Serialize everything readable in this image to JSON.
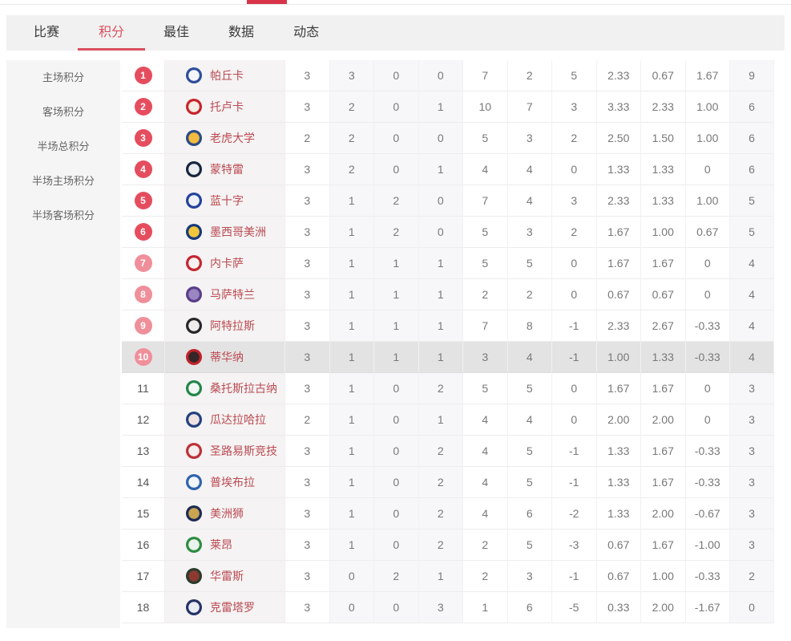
{
  "colors": {
    "accent_red": "#d7344a",
    "tab_active": "#d9505e",
    "badge_solid": "#e54d5e",
    "badge_light": "#ef8f9a",
    "team_name": "#ba4a52",
    "row_highlight": "#e4e3e3"
  },
  "tabs": [
    {
      "id": "matches",
      "label": "比赛",
      "active": false
    },
    {
      "id": "standings",
      "label": "积分",
      "active": true
    },
    {
      "id": "best",
      "label": "最佳",
      "active": false
    },
    {
      "id": "stats",
      "label": "数据",
      "active": false
    },
    {
      "id": "news",
      "label": "动态",
      "active": false
    }
  ],
  "sidebar": {
    "items": [
      {
        "id": "home-points",
        "label": "主场积分"
      },
      {
        "id": "away-points",
        "label": "客场积分"
      },
      {
        "id": "half-total-points",
        "label": "半场总积分"
      },
      {
        "id": "half-home-points",
        "label": "半场主场积分"
      },
      {
        "id": "half-away-points",
        "label": "半场客场积分"
      }
    ]
  },
  "table": {
    "highlighted_rank": 10,
    "teams": [
      {
        "rank": 1,
        "name": "帕丘卡",
        "badge": "solid",
        "logo": {
          "outer": "#2e4d9b",
          "inner": "#f3f5f9"
        },
        "stats": {
          "p": "3",
          "w": "3",
          "d": "0",
          "l": "0",
          "gf": "7",
          "ga": "2",
          "gd": "5",
          "agf": "2.33",
          "aga": "0.67",
          "agd": "1.67",
          "pts": "9"
        }
      },
      {
        "rank": 2,
        "name": "托卢卡",
        "badge": "solid",
        "logo": {
          "outer": "#c8242b",
          "inner": "#f7efe7"
        },
        "stats": {
          "p": "3",
          "w": "2",
          "d": "0",
          "l": "1",
          "gf": "10",
          "ga": "7",
          "gd": "3",
          "agf": "3.33",
          "aga": "2.33",
          "agd": "1.00",
          "pts": "6"
        }
      },
      {
        "rank": 3,
        "name": "老虎大学",
        "badge": "solid",
        "logo": {
          "outer": "#2b4b83",
          "inner": "#f3bb3f"
        },
        "stats": {
          "p": "2",
          "w": "2",
          "d": "0",
          "l": "0",
          "gf": "5",
          "ga": "3",
          "gd": "2",
          "agf": "2.50",
          "aga": "1.50",
          "agd": "1.00",
          "pts": "6"
        }
      },
      {
        "rank": 4,
        "name": "蒙特雷",
        "badge": "solid",
        "logo": {
          "outer": "#16273f",
          "inner": "#eceef1"
        },
        "stats": {
          "p": "3",
          "w": "2",
          "d": "0",
          "l": "1",
          "gf": "4",
          "ga": "4",
          "gd": "0",
          "agf": "1.33",
          "aga": "1.33",
          "agd": "0",
          "pts": "6"
        }
      },
      {
        "rank": 5,
        "name": "蓝十字",
        "badge": "solid",
        "logo": {
          "outer": "#24439c",
          "inner": "#eef2f8"
        },
        "stats": {
          "p": "3",
          "w": "1",
          "d": "2",
          "l": "0",
          "gf": "7",
          "ga": "4",
          "gd": "3",
          "agf": "2.33",
          "aga": "1.33",
          "agd": "1.00",
          "pts": "5"
        }
      },
      {
        "rank": 6,
        "name": "墨西哥美洲",
        "badge": "solid",
        "logo": {
          "outer": "#15397b",
          "inner": "#f0c63d"
        },
        "stats": {
          "p": "3",
          "w": "1",
          "d": "2",
          "l": "0",
          "gf": "5",
          "ga": "3",
          "gd": "2",
          "agf": "1.67",
          "aga": "1.00",
          "agd": "0.67",
          "pts": "5"
        }
      },
      {
        "rank": 7,
        "name": "内卡萨",
        "badge": "light",
        "logo": {
          "outer": "#c6252f",
          "inner": "#f5f1f1"
        },
        "stats": {
          "p": "3",
          "w": "1",
          "d": "1",
          "l": "1",
          "gf": "5",
          "ga": "5",
          "gd": "0",
          "agf": "1.67",
          "aga": "1.67",
          "agd": "0",
          "pts": "4"
        }
      },
      {
        "rank": 8,
        "name": "马萨特兰",
        "badge": "light",
        "logo": {
          "outer": "#5a3d8a",
          "inner": "#9a86c0"
        },
        "stats": {
          "p": "3",
          "w": "1",
          "d": "1",
          "l": "1",
          "gf": "2",
          "ga": "2",
          "gd": "0",
          "agf": "0.67",
          "aga": "0.67",
          "agd": "0",
          "pts": "4"
        }
      },
      {
        "rank": 9,
        "name": "阿特拉斯",
        "badge": "light",
        "logo": {
          "outer": "#26262a",
          "inner": "#efeceb"
        },
        "stats": {
          "p": "3",
          "w": "1",
          "d": "1",
          "l": "1",
          "gf": "7",
          "ga": "8",
          "gd": "-1",
          "agf": "2.33",
          "aga": "2.67",
          "agd": "-0.33",
          "pts": "4"
        }
      },
      {
        "rank": 10,
        "name": "蒂华纳",
        "badge": "light",
        "logo": {
          "outer": "#c22229",
          "inner": "#342629"
        },
        "stats": {
          "p": "3",
          "w": "1",
          "d": "1",
          "l": "1",
          "gf": "3",
          "ga": "4",
          "gd": "-1",
          "agf": "1.00",
          "aga": "1.33",
          "agd": "-0.33",
          "pts": "4"
        }
      },
      {
        "rank": 11,
        "name": "桑托斯拉古纳",
        "badge": "none",
        "logo": {
          "outer": "#23854a",
          "inner": "#f2f7f3"
        },
        "stats": {
          "p": "3",
          "w": "1",
          "d": "0",
          "l": "2",
          "gf": "5",
          "ga": "5",
          "gd": "0",
          "agf": "1.67",
          "aga": "1.67",
          "agd": "0",
          "pts": "3"
        }
      },
      {
        "rank": 12,
        "name": "瓜达拉哈拉",
        "badge": "none",
        "logo": {
          "outer": "#24407e",
          "inner": "#efe3e2"
        },
        "stats": {
          "p": "2",
          "w": "1",
          "d": "0",
          "l": "1",
          "gf": "4",
          "ga": "4",
          "gd": "0",
          "agf": "2.00",
          "aga": "2.00",
          "agd": "0",
          "pts": "3"
        }
      },
      {
        "rank": 13,
        "name": "圣路易斯竞技",
        "badge": "none",
        "logo": {
          "outer": "#bd3138",
          "inner": "#f4eeee"
        },
        "stats": {
          "p": "3",
          "w": "1",
          "d": "0",
          "l": "2",
          "gf": "4",
          "ga": "5",
          "gd": "-1",
          "agf": "1.33",
          "aga": "1.67",
          "agd": "-0.33",
          "pts": "3"
        }
      },
      {
        "rank": 14,
        "name": "普埃布拉",
        "badge": "none",
        "logo": {
          "outer": "#2f63ac",
          "inner": "#f3f5f8"
        },
        "stats": {
          "p": "3",
          "w": "1",
          "d": "0",
          "l": "2",
          "gf": "4",
          "ga": "5",
          "gd": "-1",
          "agf": "1.33",
          "aga": "1.67",
          "agd": "-0.33",
          "pts": "3"
        }
      },
      {
        "rank": 15,
        "name": "美洲狮",
        "badge": "none",
        "logo": {
          "outer": "#1c2b52",
          "inner": "#c9a552"
        },
        "stats": {
          "p": "3",
          "w": "1",
          "d": "0",
          "l": "2",
          "gf": "4",
          "ga": "6",
          "gd": "-2",
          "agf": "1.33",
          "aga": "2.00",
          "agd": "-0.67",
          "pts": "3"
        }
      },
      {
        "rank": 16,
        "name": "莱昂",
        "badge": "none",
        "logo": {
          "outer": "#2e8c41",
          "inner": "#eaf3ec"
        },
        "stats": {
          "p": "3",
          "w": "1",
          "d": "0",
          "l": "2",
          "gf": "2",
          "ga": "5",
          "gd": "-3",
          "agf": "0.67",
          "aga": "1.67",
          "agd": "-1.00",
          "pts": "3"
        }
      },
      {
        "rank": 17,
        "name": "华雷斯",
        "badge": "none",
        "logo": {
          "outer": "#2a3b2d",
          "inner": "#8c3a31"
        },
        "stats": {
          "p": "3",
          "w": "0",
          "d": "2",
          "l": "1",
          "gf": "2",
          "ga": "3",
          "gd": "-1",
          "agf": "0.67",
          "aga": "1.00",
          "agd": "-0.33",
          "pts": "2"
        }
      },
      {
        "rank": 18,
        "name": "克雷塔罗",
        "badge": "none",
        "logo": {
          "outer": "#253468",
          "inner": "#eaedf4"
        },
        "stats": {
          "p": "3",
          "w": "0",
          "d": "0",
          "l": "3",
          "gf": "1",
          "ga": "6",
          "gd": "-5",
          "agf": "0.33",
          "aga": "2.00",
          "agd": "-1.67",
          "pts": "0"
        }
      }
    ]
  }
}
